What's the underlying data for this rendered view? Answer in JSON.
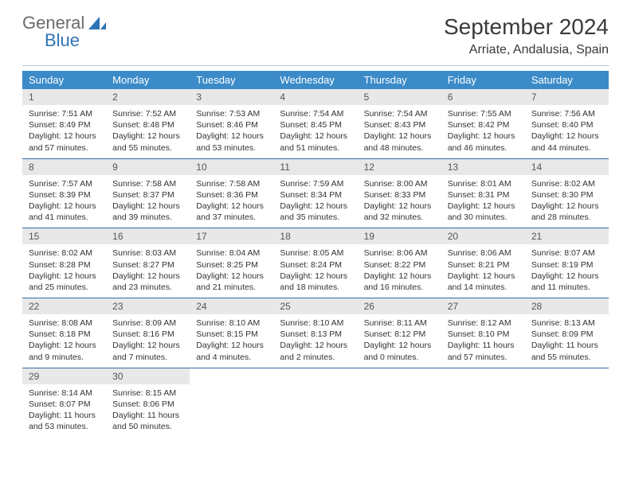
{
  "brand": {
    "general": "General",
    "blue": "Blue"
  },
  "title": "September 2024",
  "location": "Arriate, Andalusia, Spain",
  "colors": {
    "header_bg": "#3b8bc8",
    "header_text": "#ffffff",
    "daynum_bg": "#e8e8e8",
    "row_border": "#2f6daa",
    "logo_accent": "#2f74b5",
    "logo_gray": "#6a6a6a"
  },
  "columns": [
    "Sunday",
    "Monday",
    "Tuesday",
    "Wednesday",
    "Thursday",
    "Friday",
    "Saturday"
  ],
  "days": [
    {
      "n": "1",
      "sr": "7:51 AM",
      "ss": "8:49 PM",
      "dh": "12",
      "dm": "57"
    },
    {
      "n": "2",
      "sr": "7:52 AM",
      "ss": "8:48 PM",
      "dh": "12",
      "dm": "55"
    },
    {
      "n": "3",
      "sr": "7:53 AM",
      "ss": "8:46 PM",
      "dh": "12",
      "dm": "53"
    },
    {
      "n": "4",
      "sr": "7:54 AM",
      "ss": "8:45 PM",
      "dh": "12",
      "dm": "51"
    },
    {
      "n": "5",
      "sr": "7:54 AM",
      "ss": "8:43 PM",
      "dh": "12",
      "dm": "48"
    },
    {
      "n": "6",
      "sr": "7:55 AM",
      "ss": "8:42 PM",
      "dh": "12",
      "dm": "46"
    },
    {
      "n": "7",
      "sr": "7:56 AM",
      "ss": "8:40 PM",
      "dh": "12",
      "dm": "44"
    },
    {
      "n": "8",
      "sr": "7:57 AM",
      "ss": "8:39 PM",
      "dh": "12",
      "dm": "41"
    },
    {
      "n": "9",
      "sr": "7:58 AM",
      "ss": "8:37 PM",
      "dh": "12",
      "dm": "39"
    },
    {
      "n": "10",
      "sr": "7:58 AM",
      "ss": "8:36 PM",
      "dh": "12",
      "dm": "37"
    },
    {
      "n": "11",
      "sr": "7:59 AM",
      "ss": "8:34 PM",
      "dh": "12",
      "dm": "35"
    },
    {
      "n": "12",
      "sr": "8:00 AM",
      "ss": "8:33 PM",
      "dh": "12",
      "dm": "32"
    },
    {
      "n": "13",
      "sr": "8:01 AM",
      "ss": "8:31 PM",
      "dh": "12",
      "dm": "30"
    },
    {
      "n": "14",
      "sr": "8:02 AM",
      "ss": "8:30 PM",
      "dh": "12",
      "dm": "28"
    },
    {
      "n": "15",
      "sr": "8:02 AM",
      "ss": "8:28 PM",
      "dh": "12",
      "dm": "25"
    },
    {
      "n": "16",
      "sr": "8:03 AM",
      "ss": "8:27 PM",
      "dh": "12",
      "dm": "23"
    },
    {
      "n": "17",
      "sr": "8:04 AM",
      "ss": "8:25 PM",
      "dh": "12",
      "dm": "21"
    },
    {
      "n": "18",
      "sr": "8:05 AM",
      "ss": "8:24 PM",
      "dh": "12",
      "dm": "18"
    },
    {
      "n": "19",
      "sr": "8:06 AM",
      "ss": "8:22 PM",
      "dh": "12",
      "dm": "16"
    },
    {
      "n": "20",
      "sr": "8:06 AM",
      "ss": "8:21 PM",
      "dh": "12",
      "dm": "14"
    },
    {
      "n": "21",
      "sr": "8:07 AM",
      "ss": "8:19 PM",
      "dh": "12",
      "dm": "11"
    },
    {
      "n": "22",
      "sr": "8:08 AM",
      "ss": "8:18 PM",
      "dh": "12",
      "dm": "9"
    },
    {
      "n": "23",
      "sr": "8:09 AM",
      "ss": "8:16 PM",
      "dh": "12",
      "dm": "7"
    },
    {
      "n": "24",
      "sr": "8:10 AM",
      "ss": "8:15 PM",
      "dh": "12",
      "dm": "4"
    },
    {
      "n": "25",
      "sr": "8:10 AM",
      "ss": "8:13 PM",
      "dh": "12",
      "dm": "2"
    },
    {
      "n": "26",
      "sr": "8:11 AM",
      "ss": "8:12 PM",
      "dh": "12",
      "dm": "0"
    },
    {
      "n": "27",
      "sr": "8:12 AM",
      "ss": "8:10 PM",
      "dh": "11",
      "dm": "57"
    },
    {
      "n": "28",
      "sr": "8:13 AM",
      "ss": "8:09 PM",
      "dh": "11",
      "dm": "55"
    },
    {
      "n": "29",
      "sr": "8:14 AM",
      "ss": "8:07 PM",
      "dh": "11",
      "dm": "53"
    },
    {
      "n": "30",
      "sr": "8:15 AM",
      "ss": "8:06 PM",
      "dh": "11",
      "dm": "50"
    }
  ],
  "labels": {
    "sunrise": "Sunrise:",
    "sunset": "Sunset:",
    "daylight": "Daylight:",
    "hours": "hours",
    "and": "and",
    "minutes": "minutes."
  },
  "typography": {
    "title_fontsize": 28,
    "location_fontsize": 16,
    "header_fontsize": 13,
    "daynum_fontsize": 12,
    "body_fontsize": 10.5
  }
}
